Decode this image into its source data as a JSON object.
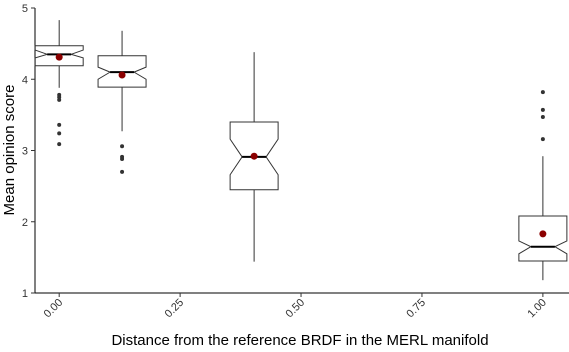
{
  "chart_data": {
    "type": "boxplot",
    "x_label": "Distance from the reference BRDF in the MERL manifold",
    "y_label": "Mean opinion score",
    "xlim": [
      -0.05,
      1.054
    ],
    "ylim": [
      1,
      5
    ],
    "xticks": [
      {
        "value": 0,
        "label": "0.00"
      },
      {
        "value": 0.25,
        "label": "0.25"
      },
      {
        "value": 0.5,
        "label": "0.50"
      },
      {
        "value": 0.75,
        "label": "0.75"
      },
      {
        "value": 1,
        "label": "1.00"
      }
    ],
    "yticks": [
      1,
      2,
      3,
      4,
      5
    ],
    "box_color": "#ffffff",
    "line_color": "#333333",
    "mean_color": "#8b0000",
    "outlier_color": "#333333",
    "groups": [
      {
        "x": 0,
        "whisker_low": 3.88,
        "q1": 4.19,
        "notch_low": 4.3,
        "median": 4.35,
        "notch_high": 4.41,
        "q3": 4.47,
        "whisker_high": 4.83,
        "mean": 4.31,
        "outliers": [
          3.78,
          3.75,
          3.71,
          3.36,
          3.24,
          3.09
        ]
      },
      {
        "x": 0.13,
        "whisker_low": 3.27,
        "q1": 3.89,
        "notch_low": 4.0,
        "median": 4.1,
        "notch_high": 4.17,
        "q3": 4.33,
        "whisker_high": 4.68,
        "mean": 4.06,
        "outliers": [
          3.06,
          2.91,
          2.88,
          2.7
        ]
      },
      {
        "x": 0.403,
        "whisker_low": 1.44,
        "q1": 2.45,
        "notch_low": 2.66,
        "median": 2.91,
        "notch_high": 3.16,
        "q3": 3.4,
        "whisker_high": 4.38,
        "mean": 2.92,
        "outliers": []
      },
      {
        "x": 1,
        "whisker_low": 1.18,
        "q1": 1.45,
        "notch_low": 1.55,
        "median": 1.65,
        "notch_high": 1.73,
        "q3": 2.08,
        "whisker_high": 2.92,
        "mean": 1.83,
        "outliers": [
          3.82,
          3.57,
          3.47,
          3.16
        ]
      }
    ]
  }
}
